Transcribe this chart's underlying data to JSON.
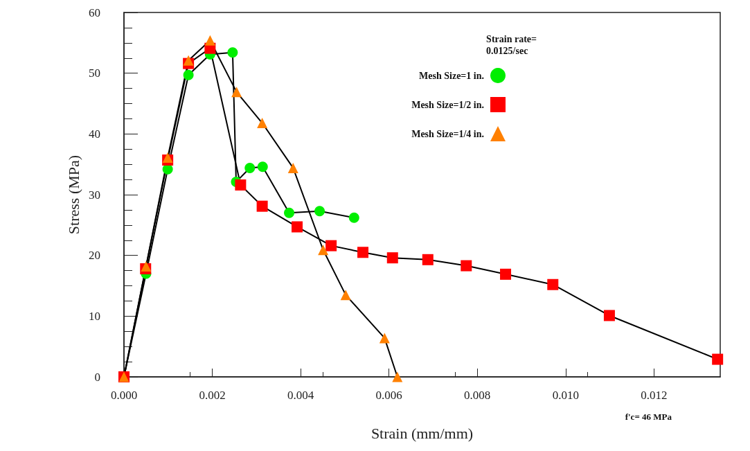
{
  "chart_data": {
    "type": "line",
    "xlabel": "Strain (mm/mm)",
    "ylabel": "Stress (MPa)",
    "legend_title": "Strain rate=\n0.0125/sec",
    "legend": "top right",
    "grid": false,
    "xlim": [
      0,
      0.0135
    ],
    "xticks": [
      {
        "value": 0,
        "label": "0.000"
      },
      {
        "value": 0.002,
        "label": "0.002"
      },
      {
        "value": 0.004,
        "label": "0.004"
      },
      {
        "value": 0.006,
        "label": "0.006"
      },
      {
        "value": 0.008,
        "label": "0.008"
      },
      {
        "value": 0.01,
        "label": "0.010"
      },
      {
        "value": 0.012,
        "label": "0.012"
      }
    ],
    "ylim": [
      0,
      60
    ],
    "yticks": [
      0,
      10,
      20,
      30,
      40,
      50,
      60
    ],
    "annotations": [
      "f'c= 46 MPa"
    ],
    "series": [
      {
        "name": "Mesh Size=1 in.",
        "color": "#00ee00",
        "marker": "circle",
        "x": [
          0,
          0.0005,
          0.00099,
          0.00146,
          0.00195,
          0.00246,
          0.00254,
          0.00285,
          0.00314,
          0.00374,
          0.00443,
          0.00521
        ],
        "values": [
          0,
          17,
          34.2,
          49.7,
          53.1,
          53.4,
          32.1,
          34.4,
          34.6,
          27,
          27.3,
          26.2
        ]
      },
      {
        "name": "Mesh Size=1/2 in.",
        "color": "#ff0000",
        "marker": "square",
        "x": [
          0,
          0.00049,
          0.00099,
          0.00146,
          0.00195,
          0.00264,
          0.00313,
          0.00392,
          0.00469,
          0.00541,
          0.00608,
          0.00688,
          0.00775,
          0.00864,
          0.00971,
          0.01099,
          0.01344
        ],
        "values": [
          0,
          17.8,
          35.7,
          51.6,
          54.1,
          31.6,
          28.1,
          24.7,
          21.6,
          20.5,
          19.6,
          19.3,
          18.3,
          16.9,
          15.2,
          10.1,
          2.9
        ]
      },
      {
        "name": "Mesh Size=1/4 in.",
        "color": "#ff8000",
        "marker": "triangle",
        "x": [
          0,
          0.0005,
          0.00099,
          0.00146,
          0.00195,
          0.00255,
          0.00313,
          0.00383,
          0.00451,
          0.00502,
          0.0059,
          0.00619
        ],
        "values": [
          0,
          18.2,
          36.1,
          52.1,
          55.4,
          46.9,
          41.8,
          34.4,
          20.9,
          13.5,
          6.4,
          0
        ]
      }
    ]
  }
}
